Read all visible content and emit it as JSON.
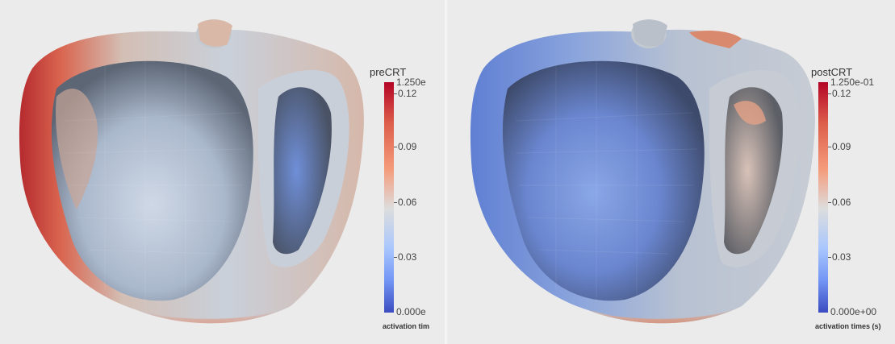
{
  "left": {
    "title": "preCRT",
    "max_label": "1.250e",
    "min_label": "0.000e",
    "ticks": [
      "0.12",
      "0.09",
      "0.06",
      "0.03"
    ],
    "caption": "activation tim"
  },
  "right": {
    "title": "postCRT",
    "max_label": "1.250e-01",
    "min_label": "0.000e+00",
    "ticks": [
      "0.12",
      "0.09",
      "0.06",
      "0.03"
    ],
    "caption": "activation times (s)"
  },
  "colormap": {
    "high": "#b40426",
    "mid": "#dcdddd",
    "low": "#3b4cc0"
  }
}
